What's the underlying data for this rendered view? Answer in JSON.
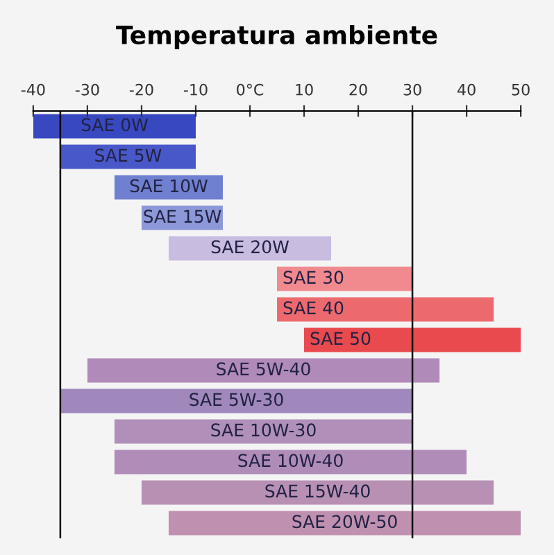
{
  "chart_data": {
    "type": "bar",
    "orientation": "horizontal",
    "title": "Temperatura ambiente",
    "categories": [
      "SAE 0W",
      "SAE 5W",
      "SAE 10W",
      "SAE 15W",
      "SAE 20W",
      "SAE 30",
      "SAE 40",
      "SAE 50",
      "SAE 5W-40",
      "SAE 5W-30",
      "SAE 10W-30",
      "SAE 10W-40",
      "SAE 15W-40",
      "SAE 20W-50"
    ],
    "base": [
      -40,
      -35,
      -25,
      -20,
      -15,
      5,
      5,
      10,
      -30,
      -35,
      -25,
      -25,
      -20,
      -15
    ],
    "values": [
      30,
      25,
      20,
      15,
      30,
      25,
      40,
      40,
      65,
      65,
      55,
      65,
      65,
      65
    ],
    "colors": [
      "#3848c0",
      "#4858c8",
      "#7080d0",
      "#8c98d8",
      "#c8bce0",
      "#f08a8e",
      "#ec6a6e",
      "#e84a4e",
      "#b08ab8",
      "#a088bc",
      "#b090b8",
      "#b08cb8",
      "#b890b4",
      "#c090b0"
    ],
    "xlim": [
      -40,
      50
    ],
    "xticks": [
      -40,
      -30,
      -20,
      -10,
      {
        "value": 0,
        "label": "0°C"
      },
      10,
      20,
      30,
      40,
      50
    ],
    "ref_lines": [
      {
        "axis": "x",
        "value": -35,
        "color": "#000000"
      },
      {
        "axis": "x",
        "value": 30,
        "color": "#000000"
      }
    ],
    "grid": false
  }
}
